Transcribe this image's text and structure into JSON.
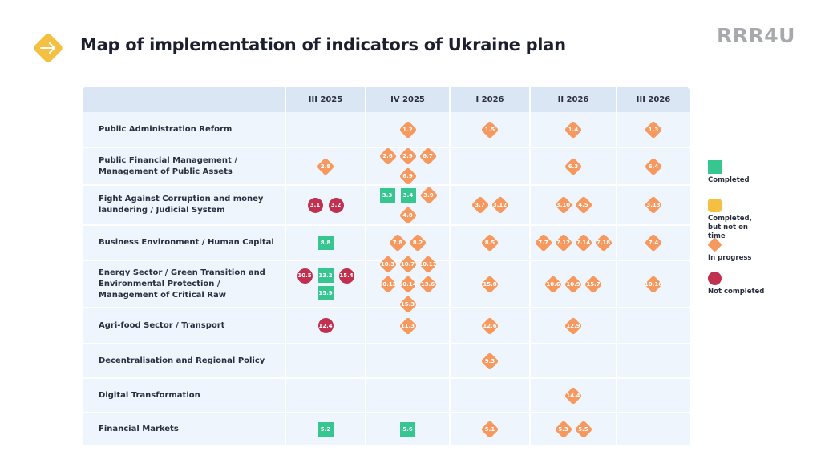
{
  "header": {
    "title": "Map of implementation of indicators of Ukraine plan",
    "brand": "RRR4U"
  },
  "colors": {
    "completed": "#36c690",
    "late": "#f5c041",
    "in_progress": "#f7995e",
    "not_completed": "#c0304f"
  },
  "columns": [
    "III 2025",
    "IV 2025",
    "I 2026",
    "II 2026",
    "III 2026"
  ],
  "rows": [
    {
      "label": "Public Administration Reform",
      "cells": [
        [],
        [
          [
            "1.2",
            "p"
          ]
        ],
        [
          [
            "1.5",
            "p"
          ]
        ],
        [
          [
            "1.4",
            "p"
          ]
        ],
        [
          [
            "1.3",
            "p"
          ]
        ]
      ]
    },
    {
      "label": "Public Financial Management / Management of Public Assets",
      "cells": [
        [
          [
            "2.8",
            "p"
          ]
        ],
        [
          [
            "2.6",
            "p"
          ],
          [
            "2.9",
            "p"
          ],
          [
            "6.7",
            "p"
          ],
          [
            "6.9",
            "p"
          ]
        ],
        [],
        [
          [
            "6.3",
            "p"
          ]
        ],
        [
          [
            "6.4",
            "p"
          ]
        ]
      ]
    },
    {
      "label": "Fight Against Corruption and money laundering / Judicial System",
      "cells": [
        [
          [
            "3.1",
            "n"
          ],
          [
            "3.2",
            "n"
          ]
        ],
        [
          [
            "3.3",
            "c"
          ],
          [
            "3.4",
            "c"
          ],
          [
            "3.9",
            "p"
          ],
          [
            "4.8",
            "p"
          ]
        ],
        [
          [
            "3.7",
            "p"
          ],
          [
            "3.12",
            "p"
          ]
        ],
        [
          [
            "3.10",
            "p"
          ],
          [
            "4.5",
            "p"
          ]
        ],
        [
          [
            "3.13",
            "p"
          ]
        ]
      ]
    },
    {
      "label": "Business Environment / Human Capital",
      "cells": [
        [
          [
            "8.8",
            "c"
          ]
        ],
        [
          [
            "7.8",
            "p"
          ],
          [
            "8.2",
            "p"
          ]
        ],
        [
          [
            "8.5",
            "p"
          ]
        ],
        [
          [
            "7.7",
            "p"
          ],
          [
            "7.12",
            "p"
          ],
          [
            "7.14",
            "p"
          ],
          [
            "7.18",
            "p"
          ]
        ],
        [
          [
            "7.4",
            "p"
          ]
        ]
      ]
    },
    {
      "label": "Energy Sector / Green Transition and Environmental Protection / Management of Critical Raw",
      "cells": [
        [
          [
            "10.5",
            "n"
          ],
          [
            "13.2",
            "c"
          ],
          [
            "15.4",
            "n"
          ],
          [
            "15.9",
            "c"
          ]
        ],
        [
          [
            "10.3",
            "p"
          ],
          [
            "10.7",
            "p"
          ],
          [
            "10.11",
            "p"
          ],
          [
            "10.13",
            "p"
          ],
          [
            "10.14",
            "p"
          ],
          [
            "13.6",
            "p"
          ],
          [
            "15.3",
            "p"
          ]
        ],
        [
          [
            "15.8",
            "p"
          ]
        ],
        [
          [
            "10.6",
            "p"
          ],
          [
            "10.9",
            "p"
          ],
          [
            "15.7",
            "p"
          ]
        ],
        [
          [
            "10.16",
            "p"
          ]
        ]
      ]
    },
    {
      "label": "Agri-food Sector / Transport",
      "cells": [
        [
          [
            "12.4",
            "n"
          ]
        ],
        [
          [
            "11.3",
            "p"
          ]
        ],
        [
          [
            "12.6",
            "p"
          ]
        ],
        [
          [
            "12.9",
            "p"
          ]
        ],
        []
      ]
    },
    {
      "label": "Decentralisation and Regional Policy",
      "cells": [
        [],
        [],
        [
          [
            "9.3",
            "p"
          ]
        ],
        [],
        []
      ]
    },
    {
      "label": "Digital Transformation",
      "cells": [
        [],
        [],
        [],
        [
          [
            "14.4",
            "p"
          ]
        ],
        []
      ]
    },
    {
      "label": "Financial Markets",
      "cells": [
        [
          [
            "5.2",
            "c"
          ]
        ],
        [
          [
            "5.6",
            "c"
          ]
        ],
        [
          [
            "5.1",
            "p"
          ]
        ],
        [
          [
            "5.3",
            "p"
          ],
          [
            "5.5",
            "p"
          ]
        ],
        []
      ]
    }
  ],
  "legend": [
    {
      "label": "Completed",
      "status": "c"
    },
    {
      "label": "Completed, but not on time",
      "status": "l"
    },
    {
      "label": "In progress",
      "status": "p"
    },
    {
      "label": "Not completed",
      "status": "n"
    }
  ]
}
